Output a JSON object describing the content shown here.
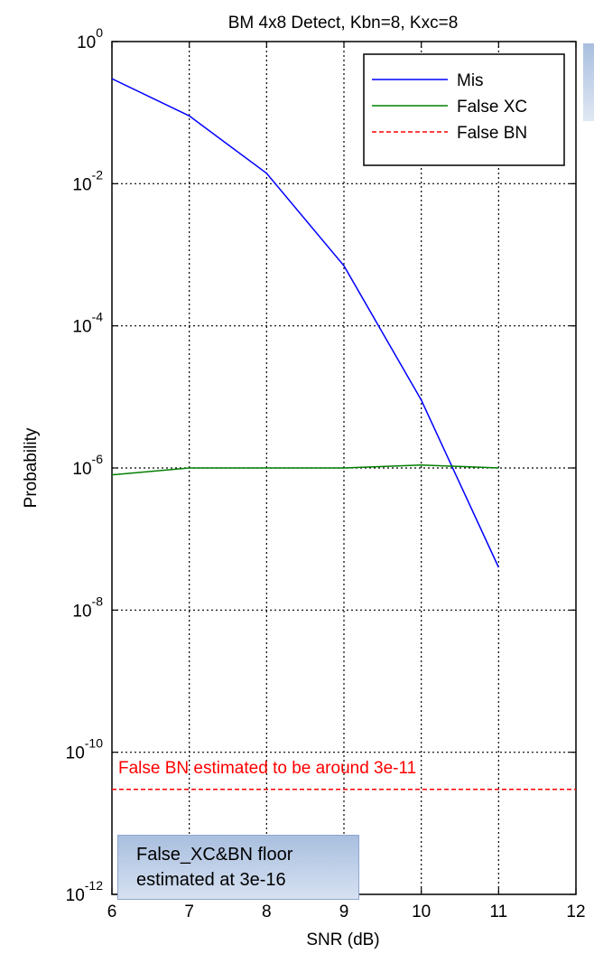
{
  "chart_data": {
    "type": "line",
    "title": "BM 4x8 Detect, Kbn=8, Kxc=8",
    "xlabel": "SNR (dB)",
    "ylabel": "Probability",
    "xlim": [
      6,
      12
    ],
    "ylim_exponent": [
      -12,
      0
    ],
    "yscale": "log",
    "grid": true,
    "legend_position": "top-right",
    "x_ticks": [
      "6",
      "7",
      "8",
      "9",
      "10",
      "11",
      "12"
    ],
    "y_tick_exponents": [
      0,
      -2,
      -4,
      -6,
      -8,
      -10,
      -12
    ],
    "series": [
      {
        "name": "Mis",
        "color": "#0000ff",
        "style": "solid",
        "x": [
          6,
          7,
          8,
          9,
          10,
          11
        ],
        "y": [
          0.3,
          0.09,
          0.014,
          0.0007,
          9e-06,
          4e-08
        ]
      },
      {
        "name": "False XC",
        "color": "#008000",
        "style": "solid",
        "x": [
          6,
          7,
          8,
          9,
          10,
          11
        ],
        "y": [
          8e-07,
          1e-06,
          1e-06,
          1e-06,
          1.1e-06,
          1e-06
        ]
      },
      {
        "name": "False BN",
        "color": "#ff0000",
        "style": "dashed",
        "x": [
          6,
          12
        ],
        "y": [
          3e-11,
          3e-11
        ]
      }
    ],
    "annotations": [
      {
        "text": "False BN  estimated to be around 3e-11",
        "color": "#ff0000"
      },
      {
        "text_lines": [
          "False_XC&BN floor",
          "estimated at 3e-16"
        ]
      }
    ]
  }
}
